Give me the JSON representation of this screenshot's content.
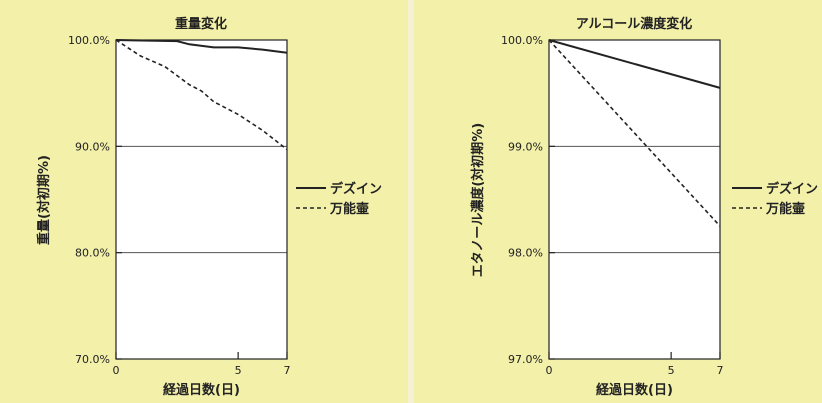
{
  "chart_data": [
    {
      "type": "line",
      "title": "重量変化",
      "xlabel": "経過日数(日)",
      "ylabel": "重量(対初期%)",
      "xlim": [
        0,
        7
      ],
      "ylim": [
        70,
        100
      ],
      "x_ticks": [
        "0",
        "5",
        "7"
      ],
      "y_ticks": [
        "70.0%",
        "80.0%",
        "90.0%",
        "100.0%"
      ],
      "y_tick_values": [
        70,
        80,
        90,
        100
      ],
      "x_tick_values": [
        0,
        5,
        7
      ],
      "grid": "horizontal",
      "legend_position": "right",
      "series": [
        {
          "name": "デズイン",
          "style": "solid",
          "x": [
            0,
            2.5,
            3,
            4,
            5,
            6,
            7
          ],
          "y": [
            100,
            99.9,
            99.6,
            99.3,
            99.3,
            99.1,
            98.8
          ]
        },
        {
          "name": "万能壷",
          "style": "dashed",
          "x": [
            0,
            1,
            2,
            3,
            3.5,
            4,
            5,
            6,
            7
          ],
          "y": [
            100,
            98.5,
            97.5,
            95.8,
            95.2,
            94.2,
            93,
            91.5,
            89.7
          ]
        }
      ]
    },
    {
      "type": "line",
      "title": "アルコール濃度変化",
      "xlabel": "経過日数(日)",
      "ylabel": "エタノール濃度(対初期%)",
      "xlim": [
        0,
        7
      ],
      "ylim": [
        97,
        100
      ],
      "x_ticks": [
        "0",
        "5",
        "7"
      ],
      "y_ticks": [
        "97.0%",
        "98.0%",
        "99.0%",
        "100.0%"
      ],
      "y_tick_values": [
        97,
        98,
        99,
        100
      ],
      "x_tick_values": [
        0,
        5,
        7
      ],
      "grid": "horizontal",
      "legend_position": "right",
      "series": [
        {
          "name": "デズイン",
          "style": "solid",
          "x": [
            0,
            7
          ],
          "y": [
            100,
            99.55
          ]
        },
        {
          "name": "万能壷",
          "style": "dashed",
          "x": [
            0,
            7
          ],
          "y": [
            100,
            98.25
          ]
        }
      ]
    }
  ],
  "colors": {
    "panel": "#f2f0a9",
    "plot_area": "#ffffff",
    "line": "#222222",
    "grid": "#555555"
  }
}
